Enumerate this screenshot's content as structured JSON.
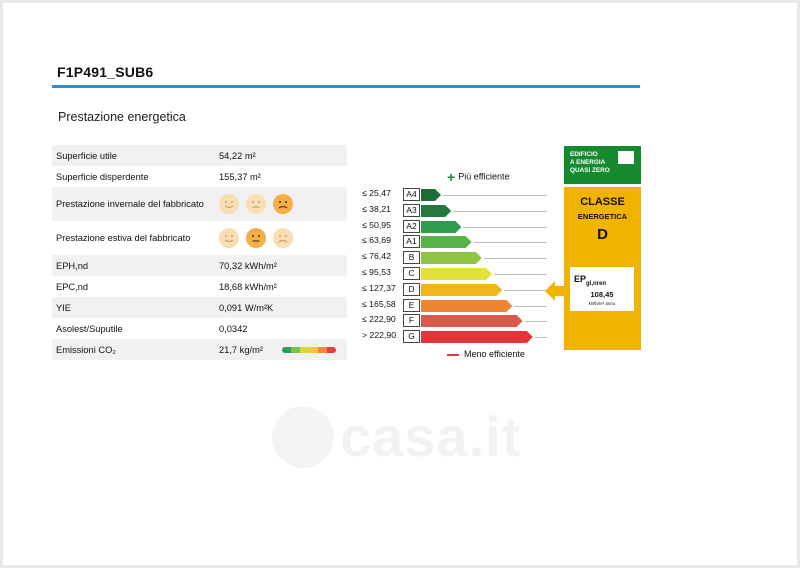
{
  "document": {
    "title": "F1P491_SUB6",
    "section_title": "Prestazione energetica"
  },
  "properties": [
    {
      "label": "Superficie utile",
      "value": "54,22 m²"
    },
    {
      "label": "Superficie disperdente",
      "value": "155,37 m²"
    },
    {
      "label": "Prestazione invernale del fabbricato",
      "value": "",
      "rating": "poor",
      "faces": [
        "happy",
        "neutral",
        "sad"
      ],
      "active_face": 2
    },
    {
      "label": "Prestazione estiva del fabbricato",
      "value": "",
      "rating": "medium",
      "faces": [
        "happy",
        "neutral",
        "sad"
      ],
      "active_face": 1
    },
    {
      "label": "EPH,nd",
      "value": "70,32 kWh/m²"
    },
    {
      "label": "EPC,nd",
      "value": "18,68 kWh/m²"
    },
    {
      "label": "YIE",
      "value": "0,091 W/m²K"
    },
    {
      "label": "Asolest/Suputile",
      "value": "0,0342"
    },
    {
      "label": "Emissioni CO₂",
      "value": "21,7 kg/m²"
    }
  ],
  "emission_scale_colors": [
    "#2e9e4a",
    "#7cbf4a",
    "#d8d83a",
    "#f4c441",
    "#f08a3a",
    "#e0413e"
  ],
  "energy_scale": {
    "legend_top": "Più efficiente",
    "legend_bottom": "Meno efficiente",
    "classes": [
      {
        "code": "A4",
        "threshold": "≤ 25,47",
        "color": "#1f6b35"
      },
      {
        "code": "A3",
        "threshold": "≤ 38,21",
        "color": "#247a3c"
      },
      {
        "code": "A2",
        "threshold": "≤ 50,95",
        "color": "#2e9c4a"
      },
      {
        "code": "A1",
        "threshold": "≤ 63,69",
        "color": "#57b347"
      },
      {
        "code": "B",
        "threshold": "≤ 76,42",
        "color": "#8fc545"
      },
      {
        "code": "C",
        "threshold": "≤ 95,53",
        "color": "#e3e23a"
      },
      {
        "code": "D",
        "threshold": "≤ 127,37",
        "color": "#f2b61c"
      },
      {
        "code": "E",
        "threshold": "≤ 165,58",
        "color": "#ec8633"
      },
      {
        "code": "F",
        "threshold": "≤ 222,90",
        "color": "#d95a4b"
      },
      {
        "code": "G",
        "threshold": "> 222,90",
        "color": "#e2343a"
      }
    ]
  },
  "nzeb": {
    "line1": "EDIFICIO",
    "line2": "A ENERGIA",
    "line3": "QUASI ZERO"
  },
  "classe": {
    "title": "CLASSE",
    "subtitle": "ENERGETICA",
    "letter": "D",
    "ep_label": "EP",
    "ep_sub": "gl,nren",
    "ep_value": "108,45",
    "ep_unit": "kWh/m² anno"
  },
  "watermark": {
    "text": "casa.it"
  },
  "colors": {
    "accent_rule": "#2a8fd6",
    "nzeb_green": "#158a2f",
    "classe_panel": "#f0b400"
  }
}
